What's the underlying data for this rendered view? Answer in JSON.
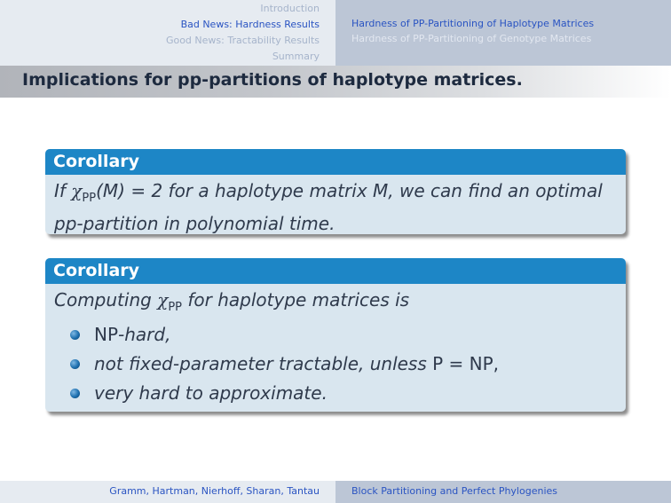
{
  "nav": {
    "sections": [
      {
        "label": "Introduction",
        "current": false
      },
      {
        "label": "Bad News: Hardness Results",
        "current": true
      },
      {
        "label": "Good News: Tractability Results",
        "current": false
      },
      {
        "label": "Summary",
        "current": false
      }
    ],
    "subsections": [
      {
        "label": "Hardness of PP-Partitioning of Haplotype Matrices",
        "current": true
      },
      {
        "label": "Hardness of PP-Partitioning of Genotype Matrices",
        "current": false
      }
    ]
  },
  "frame_title": "Implications for pp-partitions of haplotype matrices.",
  "corollary1": {
    "title": "Corollary",
    "text_if": "If ",
    "chi": "χ",
    "sub": "PP",
    "paren": "(M) = 2",
    "text_rest": " for a haplotype matrix M, we can find an optimal",
    "line2": "pp-partition in polynomial time."
  },
  "corollary2": {
    "title": "Corollary",
    "text_lead": "Computing ",
    "chi": "χ",
    "sub": "PP",
    "text_rest": " for haplotype matrices is",
    "item1_rm": "NP",
    "item1_it": "-hard,",
    "item2_it": "not fixed-parameter tractable, unless ",
    "item2_rm": "P = NP,",
    "item3_it": "very hard to approximate."
  },
  "footer": {
    "authors": "Gramm, Hartman, Nierhoff, Sharan, Tantau",
    "title": "Block Partitioning and Perfect Phylogenies"
  },
  "colors": {
    "block_title": "#1d86c6",
    "block_body": "#d9e6ef",
    "nav_current": "#2a54c2"
  }
}
